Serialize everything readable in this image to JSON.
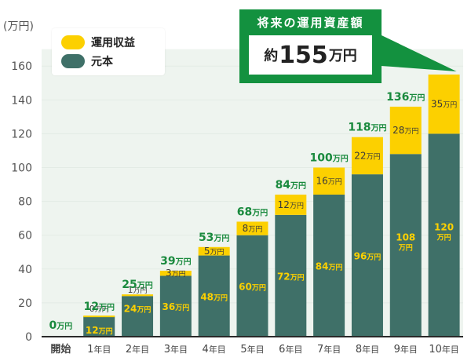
{
  "colors": {
    "principal": "#3f7068",
    "gain": "#fcd000",
    "total_label": "#1a8a3e",
    "callout_bg": "#13913f",
    "axis": "#2a2a2a",
    "grid": "#e3ebe5",
    "plot_bg": "#eef4ef",
    "text": "#555555"
  },
  "legend": {
    "gain_label": "運用収益",
    "principal_label": "元本"
  },
  "callout": {
    "title": "将来の運用資産額",
    "value_prefix": "約",
    "value_number": "155",
    "value_unit": "万円"
  },
  "chart_data": {
    "type": "bar",
    "stacked": true,
    "title": "",
    "ylabel": "(万円)",
    "xlabel": "",
    "unit": "万円",
    "ylim": [
      0,
      170
    ],
    "yticks": [
      0,
      20,
      40,
      60,
      80,
      100,
      120,
      140,
      160
    ],
    "categories": [
      "開始",
      "1年目",
      "2年目",
      "3年目",
      "4年目",
      "5年目",
      "6年目",
      "7年目",
      "8年目",
      "9年目",
      "10年目"
    ],
    "series": [
      {
        "name": "元本",
        "values": [
          0,
          12,
          24,
          36,
          48,
          60,
          72,
          84,
          96,
          108,
          120
        ],
        "labels": [
          null,
          "12万円",
          "24万円",
          "36万円",
          "48万円",
          "60万円",
          "72万円",
          "84万円",
          "96万円",
          "108万円",
          "120万円"
        ]
      },
      {
        "name": "運用収益",
        "values": [
          0,
          0,
          1,
          3,
          5,
          8,
          12,
          16,
          22,
          28,
          35
        ],
        "labels": [
          null,
          "0万円",
          "1万円",
          "3万円",
          "5万円",
          "8万円",
          "12万円",
          "16万円",
          "22万円",
          "28万円",
          "35万円"
        ]
      }
    ],
    "totals": [
      0,
      12,
      25,
      39,
      53,
      68,
      84,
      100,
      118,
      136,
      155
    ],
    "total_labels": [
      "0万円",
      "12万円",
      "25万円",
      "39万円",
      "53万円",
      "68万円",
      "84万円",
      "100万円",
      "118万円",
      "136万円",
      ""
    ]
  }
}
